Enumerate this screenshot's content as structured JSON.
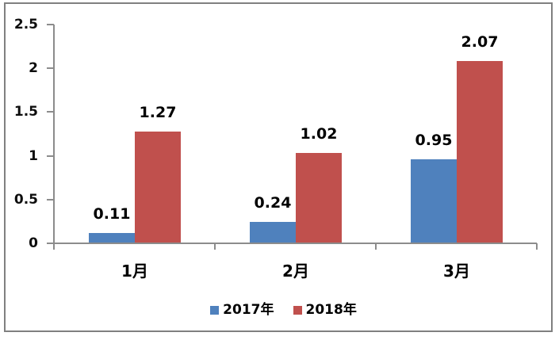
{
  "chart_data": {
    "type": "bar",
    "title": "",
    "categories": [
      "1月",
      "2月",
      "3月"
    ],
    "series": [
      {
        "name": "2017年",
        "color": "#4F81BD",
        "values": [
          0.11,
          0.24,
          0.95
        ],
        "labels": [
          "0.11",
          "0.24",
          "0.95"
        ]
      },
      {
        "name": "2018年",
        "color": "#C0504D",
        "values": [
          1.27,
          1.02,
          2.07
        ],
        "labels": [
          "1.27",
          "1.02",
          "2.07"
        ]
      }
    ],
    "ylim": [
      0,
      2.5
    ],
    "yticks": [
      {
        "value": 0,
        "label": "0"
      },
      {
        "value": 0.5,
        "label": "0.5"
      },
      {
        "value": 1,
        "label": "1"
      },
      {
        "value": 1.5,
        "label": "1.5"
      },
      {
        "value": 2,
        "label": "2"
      },
      {
        "value": 2.5,
        "label": "2.5"
      }
    ],
    "grid": false,
    "data_labels_visible": true,
    "legend_position": "bottom",
    "colors": {
      "axis": "#8C8C8C",
      "frame_border": "#808080",
      "text": "#000000",
      "background": "#FFFFFF"
    }
  }
}
